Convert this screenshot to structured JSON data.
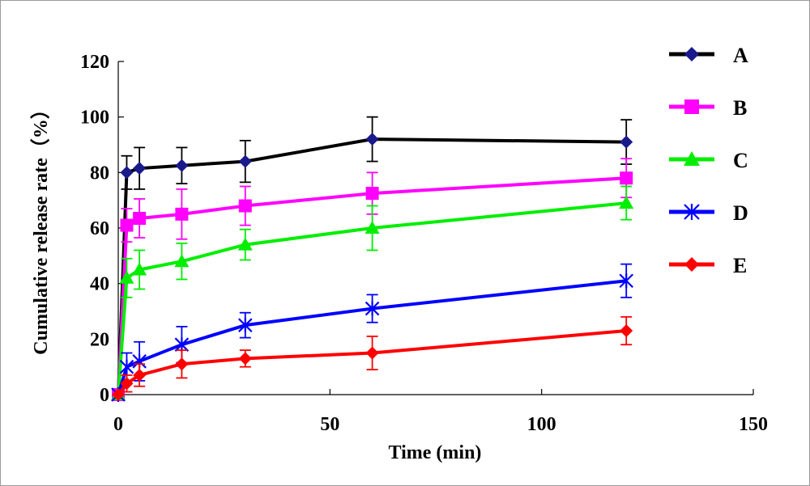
{
  "chart_data": {
    "type": "line",
    "xlabel": "Time (min)",
    "ylabel": "Cumulative release rate（%）",
    "xlim": [
      0,
      150
    ],
    "ylim": [
      0,
      120
    ],
    "xticks": [
      0,
      50,
      100,
      150
    ],
    "yticks": [
      0,
      20,
      40,
      60,
      80,
      100,
      120
    ],
    "grid": false,
    "legend_position": "right",
    "series": [
      {
        "name": "A",
        "color": "#000000",
        "marker_color": "#1a1a8c",
        "marker": "diamond",
        "x": [
          0,
          2,
          5,
          15,
          30,
          60,
          120
        ],
        "y": [
          0,
          80,
          81.5,
          82.5,
          84,
          92,
          91
        ],
        "err": [
          0,
          6,
          7.5,
          6.5,
          7.5,
          8,
          8
        ]
      },
      {
        "name": "B",
        "color": "#ff00ff",
        "marker_color": "#ff00ff",
        "marker": "square",
        "x": [
          0,
          2,
          5,
          15,
          30,
          60,
          120
        ],
        "y": [
          0,
          61,
          63.5,
          65,
          68,
          72.5,
          78
        ],
        "err": [
          0,
          6,
          7,
          9,
          7,
          7.5,
          7
        ]
      },
      {
        "name": "C",
        "color": "#00ee00",
        "marker_color": "#00ee00",
        "marker": "triangle",
        "x": [
          0,
          2,
          5,
          15,
          30,
          60,
          120
        ],
        "y": [
          0,
          42,
          45,
          48,
          54,
          60,
          69
        ],
        "err": [
          0,
          7,
          7,
          6.5,
          5.5,
          8,
          6
        ]
      },
      {
        "name": "D",
        "color": "#0000ff",
        "marker_color": "#0000ff",
        "marker": "star",
        "x": [
          0,
          2,
          5,
          15,
          30,
          60,
          120
        ],
        "y": [
          0,
          10,
          12,
          18,
          25,
          31,
          41
        ],
        "err": [
          0,
          5,
          7,
          6.5,
          4.5,
          5,
          6
        ]
      },
      {
        "name": "E",
        "color": "#ff0000",
        "marker_color": "#ff0000",
        "marker": "diamond",
        "x": [
          0,
          2,
          5,
          15,
          30,
          60,
          120
        ],
        "y": [
          0,
          4,
          7,
          11,
          13,
          15,
          23
        ],
        "err": [
          0,
          3,
          4,
          5,
          3,
          6,
          5
        ]
      }
    ]
  }
}
